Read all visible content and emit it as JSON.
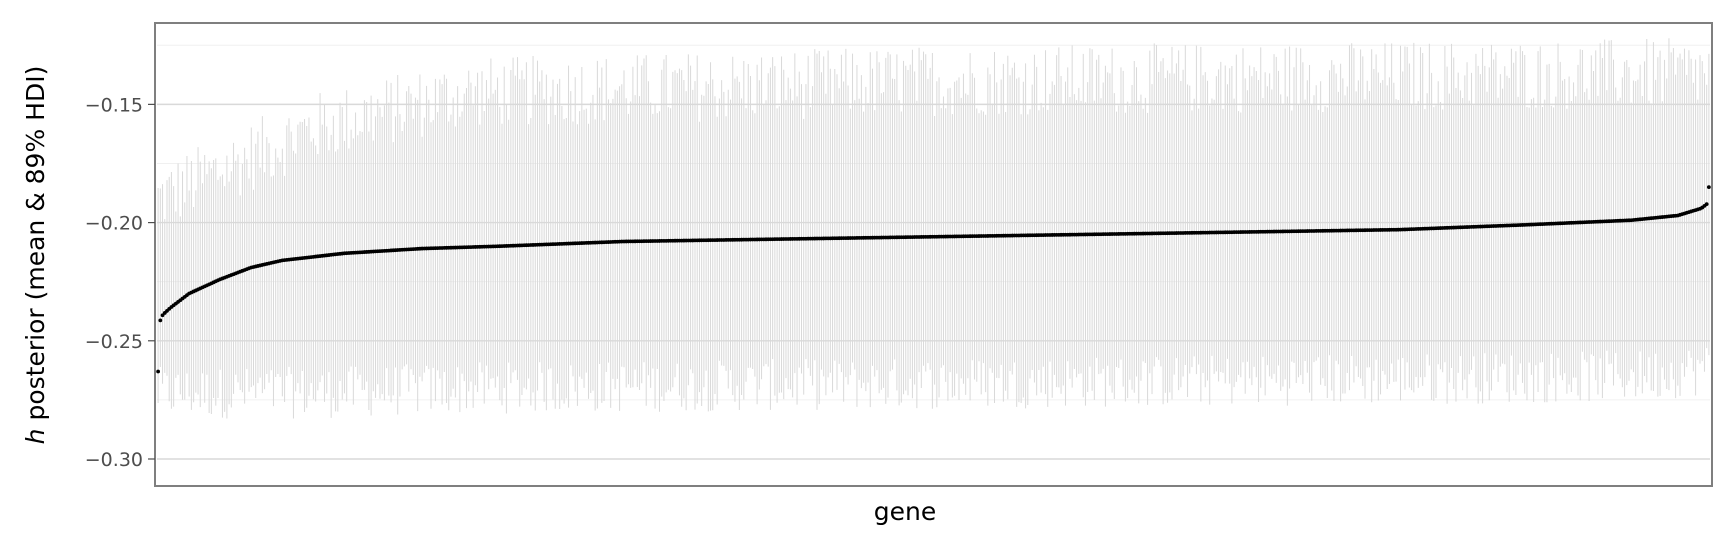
{
  "chart_data": {
    "type": "scatter",
    "title": "",
    "xlabel": "gene",
    "ylabel_italic": "h",
    "ylabel_rest": " posterior (mean & 89% HDI)",
    "ylim": [
      -0.311,
      -0.116
    ],
    "y_ticks": [
      -0.3,
      -0.25,
      -0.2,
      -0.15
    ],
    "y_tick_labels": [
      "−0.30",
      "−0.25",
      "−0.20",
      "−0.15"
    ],
    "x_ticks_shown": false,
    "grid": true,
    "n_genes": 700,
    "mean_profile": {
      "quantile": [
        0.0,
        0.001,
        0.003,
        0.008,
        0.02,
        0.04,
        0.06,
        0.08,
        0.12,
        0.17,
        0.22,
        0.3,
        0.4,
        0.5,
        0.6,
        0.7,
        0.8,
        0.88,
        0.95,
        0.98,
        0.995,
        0.999,
        1.0
      ],
      "mean": [
        -0.263,
        -0.242,
        -0.239,
        -0.236,
        -0.23,
        -0.224,
        -0.219,
        -0.216,
        -0.213,
        -0.211,
        -0.21,
        -0.208,
        -0.207,
        -0.206,
        -0.205,
        -0.204,
        -0.203,
        -0.201,
        -0.199,
        -0.197,
        -0.194,
        -0.192,
        -0.185
      ]
    },
    "hdi_profile": {
      "quantile": [
        0.0,
        0.05,
        0.1,
        0.2,
        0.5,
        0.8,
        0.95,
        1.0
      ],
      "upper": [
        -0.19,
        -0.175,
        -0.16,
        -0.145,
        -0.14,
        -0.138,
        -0.137,
        -0.137
      ],
      "lower": [
        -0.272,
        -0.272,
        -0.272,
        -0.27,
        -0.268,
        -0.266,
        -0.265,
        -0.262
      ]
    },
    "colors": {
      "point": "#000000",
      "interval": "#d9d9d9",
      "panel_border": "#7f7f7f",
      "major_grid": "#d9d9d9",
      "minor_grid": "#f0f0f0"
    }
  }
}
